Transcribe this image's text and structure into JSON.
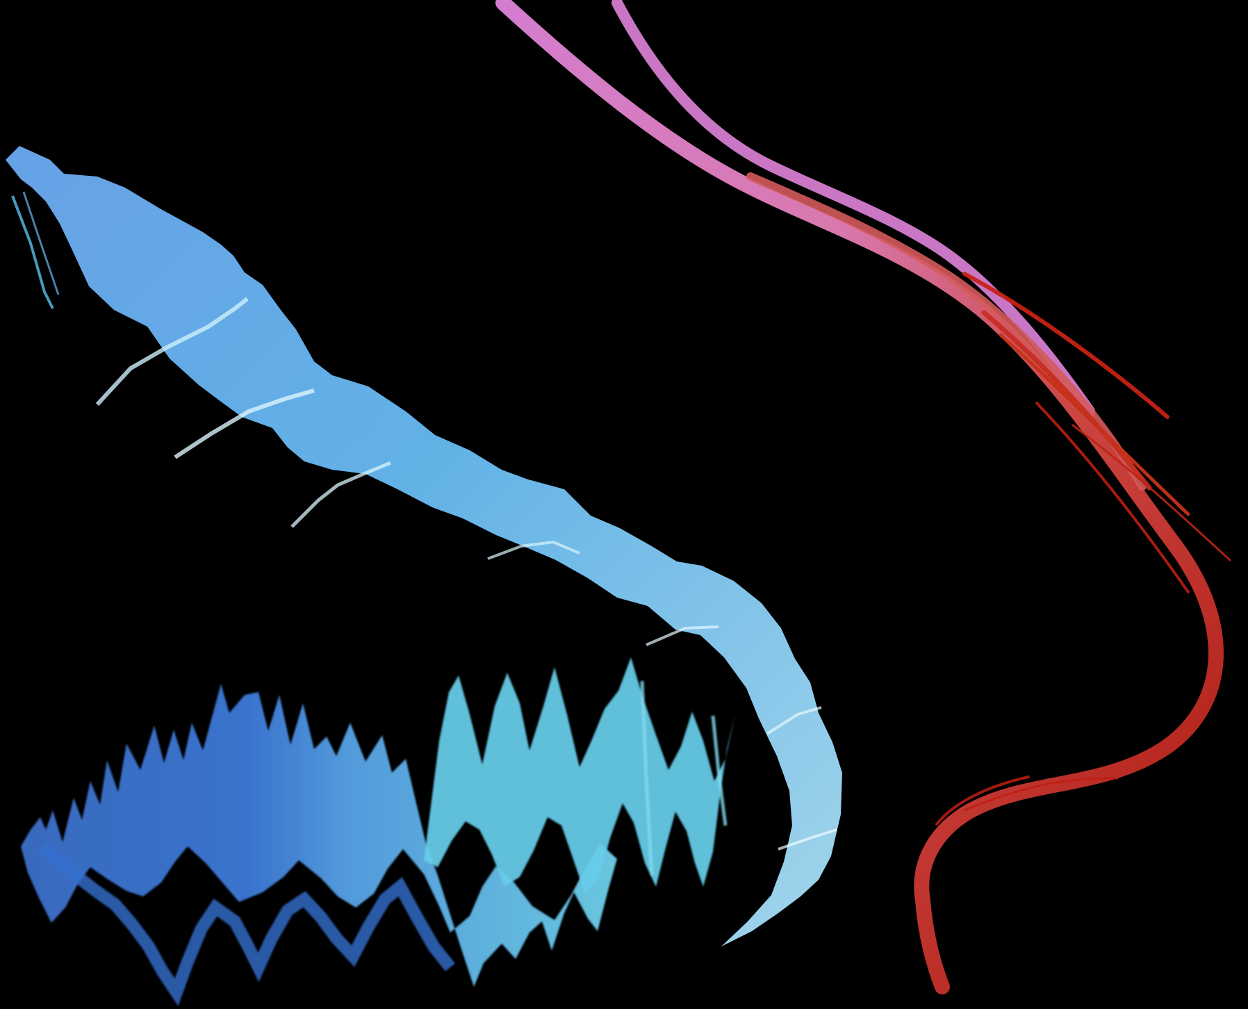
{
  "scene": {
    "background_color": "#000000",
    "elements": [
      {
        "name": "blue-creature-shape",
        "description_color": "#5fa6e8"
      },
      {
        "name": "blue-waveform-shape",
        "description_color": "#3f7fd6"
      },
      {
        "name": "cyan-waveform-shape",
        "description_color": "#62d3ea"
      },
      {
        "name": "pink-red-tendrils",
        "description_color": "#d34b43"
      }
    ]
  }
}
